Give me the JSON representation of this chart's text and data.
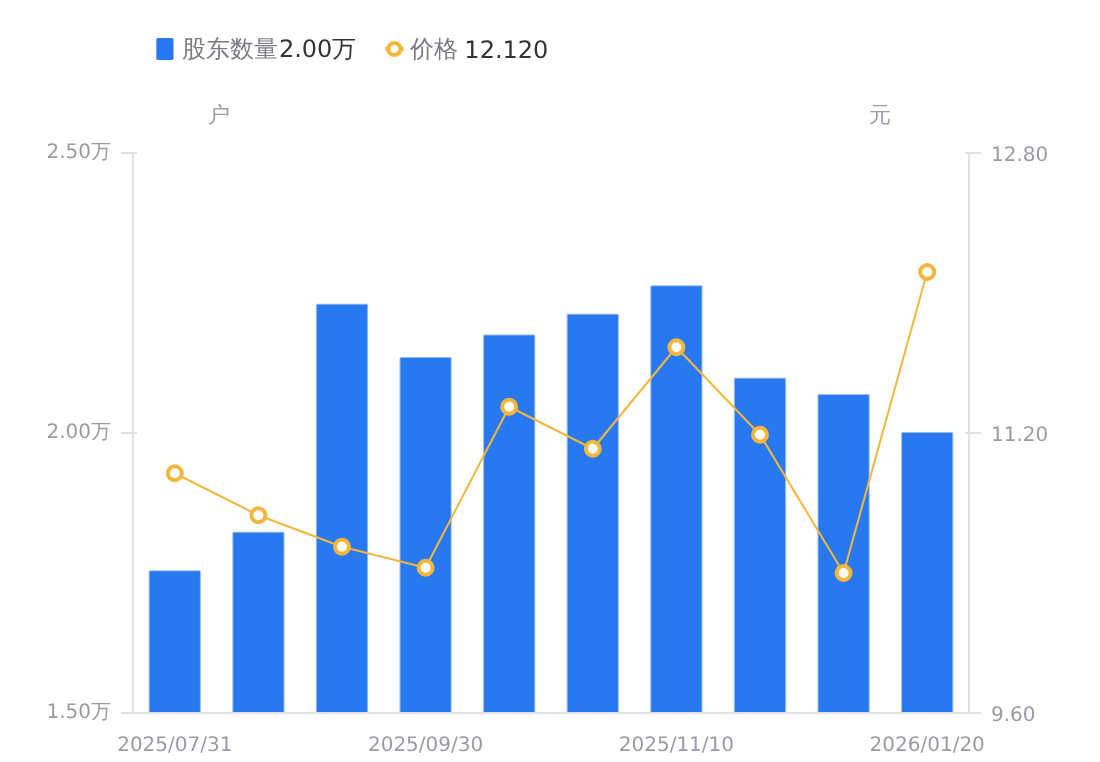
{
  "chart_data": {
    "type": "bar",
    "categories": [
      "2025/07/31",
      null,
      null,
      "2025/09/30",
      null,
      null,
      "2025/11/10",
      null,
      null,
      "2026/01/20"
    ],
    "ylabel": "户",
    "y2label": "元",
    "ylim": [
      1.5,
      2.5
    ],
    "yticks": [
      {
        "value": 1.5,
        "label": "1.50万"
      },
      {
        "value": 2.0,
        "label": "2.00万"
      },
      {
        "value": 2.5,
        "label": "2.50万"
      }
    ],
    "y2lim": [
      9.6,
      12.8
    ],
    "y2ticks": [
      {
        "value": 9.6,
        "label": "9.60"
      },
      {
        "value": 11.2,
        "label": "11.20"
      },
      {
        "value": 12.8,
        "label": "12.80"
      }
    ],
    "series": [
      {
        "name": "股东数量",
        "color": "#2878f0",
        "values": [
          1.753,
          1.822,
          2.229,
          2.134,
          2.174,
          2.211,
          2.262,
          2.097,
          2.068,
          2.0
        ]
      },
      {
        "name": "价格",
        "type": "line",
        "axis": "y2",
        "color": "#f5b73b",
        "marker": "circle",
        "values": [
          10.97,
          10.73,
          10.55,
          10.43,
          11.35,
          11.11,
          11.69,
          11.19,
          10.4,
          12.12
        ]
      }
    ],
    "annotations": [
      "2.00万",
      "12.120"
    ],
    "legend": "top left",
    "grid": false
  }
}
